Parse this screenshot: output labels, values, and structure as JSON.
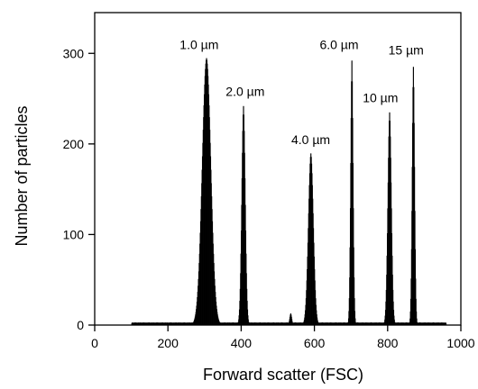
{
  "chart_data": {
    "type": "histogram",
    "title": "",
    "xlabel": "Forward scatter (FSC)",
    "ylabel": "Number of particles",
    "xlim": [
      0,
      1000
    ],
    "ylim": [
      0,
      345
    ],
    "xticks": [
      0,
      200,
      400,
      600,
      800,
      1000
    ],
    "yticks": [
      0,
      100,
      200,
      300
    ],
    "grid": false,
    "baseline_level": 3,
    "peaks": [
      {
        "label": "1.0 µm",
        "center": 305,
        "height": 295,
        "width": 12
      },
      {
        "label": "2.0 µm",
        "center": 406,
        "height": 243,
        "width": 5
      },
      {
        "label": "4.0 µm",
        "center": 590,
        "height": 190,
        "width": 7
      },
      {
        "label": "6.0 µm",
        "center": 702,
        "height": 295,
        "width": 3.5
      },
      {
        "label": "10 µm",
        "center": 805,
        "height": 236,
        "width": 5
      },
      {
        "label": "15 µm",
        "center": 870,
        "height": 288,
        "width": 3.5
      }
    ],
    "minor_peaks": [
      {
        "center": 535,
        "height": 13,
        "width": 3
      }
    ],
    "colors": {
      "fill": "#000000",
      "axis": "#000000"
    }
  }
}
